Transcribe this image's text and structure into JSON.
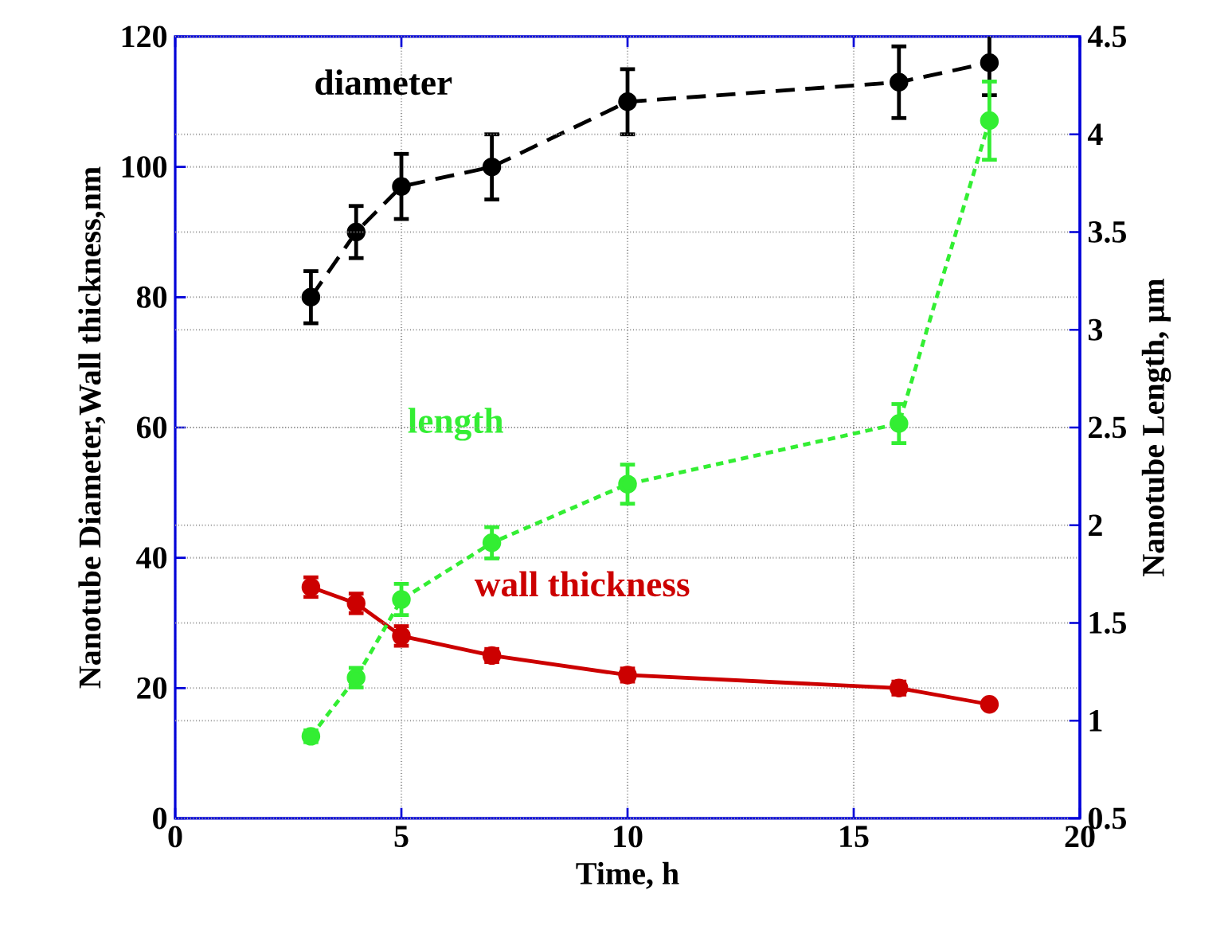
{
  "chart_data": {
    "type": "line",
    "xlabel": "Time, h",
    "ylabel": "Nanotube Diameter,Wall thickness,nm",
    "y2label": "Nanotube Length, µm",
    "x": [
      3,
      4,
      5,
      7,
      10,
      16,
      18
    ],
    "xlim": [
      0,
      20
    ],
    "xticks": [
      0,
      5,
      10,
      15,
      20
    ],
    "ylim": [
      0,
      120
    ],
    "yticks": [
      0,
      20,
      40,
      60,
      80,
      100,
      120
    ],
    "y2lim": [
      0.5,
      4.5
    ],
    "y2ticks": [
      0.5,
      1,
      1.5,
      2,
      2.5,
      3,
      3.5,
      4,
      4.5
    ],
    "grid": true,
    "marker": "circle",
    "series": [
      {
        "name": "diameter",
        "color": "#000000",
        "line_style": "dashed",
        "values": [
          80,
          90,
          97,
          100,
          110,
          113,
          116
        ],
        "errors": [
          4,
          4,
          5,
          5,
          5,
          5.5,
          5
        ]
      },
      {
        "name": "length",
        "color": "#33ee33",
        "line_style": "dotted",
        "axis": "y2",
        "values": [
          0.92,
          1.22,
          1.62,
          1.91,
          2.21,
          2.52,
          4.07
        ],
        "errors": [
          0.03,
          0.05,
          0.08,
          0.08,
          0.1,
          0.1,
          0.2
        ]
      },
      {
        "name": "wall  thickness",
        "color": "#cc0000",
        "line_style": "solid",
        "values": [
          35.5,
          33,
          28,
          25,
          22,
          20,
          17.5
        ],
        "errors": [
          1.5,
          1.5,
          1.5,
          1,
          1,
          1,
          0.5
        ]
      }
    ]
  }
}
